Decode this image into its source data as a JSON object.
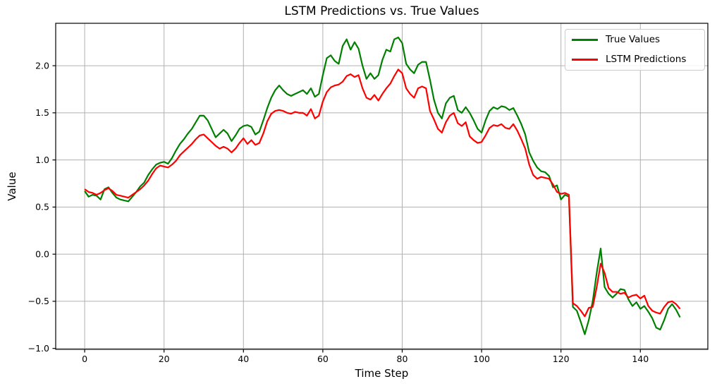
{
  "chart_data": {
    "type": "line",
    "title": "LSTM Predictions vs. True Values",
    "xlabel": "Time Step",
    "ylabel": "Value",
    "x_start": 0,
    "x_step": 1,
    "xticks": [
      0,
      20,
      40,
      60,
      80,
      100,
      120,
      140
    ],
    "yticks": [
      -1.0,
      -0.5,
      0.0,
      0.5,
      1.0,
      1.5,
      2.0
    ],
    "xlim": [
      -7.3,
      157.0
    ],
    "ylim": [
      -1.01,
      2.45
    ],
    "grid": true,
    "grid_color": "#b0b0b0",
    "spine_color": "#000000",
    "background": "#ffffff",
    "legend_position": "upper right",
    "line_width": 2.2,
    "series": [
      {
        "name": "True Values",
        "color": "#008000",
        "values": [
          0.67,
          0.61,
          0.63,
          0.62,
          0.58,
          0.69,
          0.71,
          0.65,
          0.6,
          0.58,
          0.57,
          0.56,
          0.61,
          0.66,
          0.72,
          0.76,
          0.84,
          0.9,
          0.95,
          0.97,
          0.98,
          0.96,
          1.02,
          1.1,
          1.17,
          1.22,
          1.28,
          1.33,
          1.4,
          1.47,
          1.47,
          1.42,
          1.33,
          1.24,
          1.28,
          1.32,
          1.28,
          1.2,
          1.26,
          1.33,
          1.36,
          1.37,
          1.35,
          1.27,
          1.3,
          1.42,
          1.55,
          1.66,
          1.74,
          1.79,
          1.74,
          1.7,
          1.68,
          1.7,
          1.72,
          1.74,
          1.7,
          1.76,
          1.67,
          1.7,
          1.9,
          2.08,
          2.11,
          2.05,
          2.02,
          2.21,
          2.28,
          2.17,
          2.25,
          2.18,
          2.0,
          1.86,
          1.92,
          1.86,
          1.9,
          2.06,
          2.17,
          2.15,
          2.28,
          2.3,
          2.24,
          2.02,
          1.96,
          1.92,
          2.01,
          2.04,
          2.04,
          1.85,
          1.64,
          1.5,
          1.44,
          1.6,
          1.66,
          1.68,
          1.53,
          1.5,
          1.56,
          1.5,
          1.42,
          1.33,
          1.29,
          1.42,
          1.52,
          1.56,
          1.54,
          1.57,
          1.56,
          1.53,
          1.55,
          1.47,
          1.38,
          1.27,
          1.08,
          0.99,
          0.92,
          0.88,
          0.87,
          0.83,
          0.71,
          0.73,
          0.58,
          0.63,
          0.61,
          -0.56,
          -0.6,
          -0.72,
          -0.85,
          -0.7,
          -0.5,
          -0.2,
          0.06,
          -0.35,
          -0.42,
          -0.46,
          -0.42,
          -0.37,
          -0.38,
          -0.48,
          -0.55,
          -0.51,
          -0.58,
          -0.55,
          -0.61,
          -0.68,
          -0.78,
          -0.8,
          -0.7,
          -0.58,
          -0.53,
          -0.59,
          -0.67
        ]
      },
      {
        "name": "LSTM Predictions",
        "color": "#ff0000",
        "values": [
          0.69,
          0.66,
          0.65,
          0.63,
          0.65,
          0.68,
          0.7,
          0.67,
          0.63,
          0.62,
          0.61,
          0.6,
          0.63,
          0.66,
          0.69,
          0.73,
          0.78,
          0.85,
          0.91,
          0.94,
          0.93,
          0.92,
          0.95,
          0.99,
          1.05,
          1.09,
          1.13,
          1.17,
          1.22,
          1.26,
          1.27,
          1.23,
          1.19,
          1.15,
          1.12,
          1.14,
          1.12,
          1.08,
          1.12,
          1.18,
          1.23,
          1.17,
          1.21,
          1.16,
          1.18,
          1.28,
          1.41,
          1.49,
          1.52,
          1.53,
          1.52,
          1.5,
          1.49,
          1.51,
          1.5,
          1.5,
          1.47,
          1.54,
          1.44,
          1.47,
          1.62,
          1.72,
          1.77,
          1.79,
          1.8,
          1.83,
          1.89,
          1.91,
          1.88,
          1.9,
          1.76,
          1.66,
          1.64,
          1.69,
          1.63,
          1.7,
          1.76,
          1.81,
          1.89,
          1.96,
          1.92,
          1.76,
          1.7,
          1.66,
          1.76,
          1.78,
          1.76,
          1.52,
          1.43,
          1.33,
          1.29,
          1.4,
          1.47,
          1.5,
          1.39,
          1.36,
          1.4,
          1.25,
          1.21,
          1.18,
          1.19,
          1.26,
          1.34,
          1.37,
          1.36,
          1.38,
          1.34,
          1.33,
          1.38,
          1.31,
          1.22,
          1.12,
          0.95,
          0.84,
          0.8,
          0.82,
          0.81,
          0.8,
          0.74,
          0.66,
          0.64,
          0.65,
          0.63,
          -0.52,
          -0.55,
          -0.6,
          -0.66,
          -0.57,
          -0.56,
          -0.35,
          -0.1,
          -0.2,
          -0.36,
          -0.4,
          -0.4,
          -0.42,
          -0.41,
          -0.46,
          -0.44,
          -0.43,
          -0.47,
          -0.44,
          -0.55,
          -0.6,
          -0.62,
          -0.63,
          -0.56,
          -0.51,
          -0.5,
          -0.53,
          -0.58
        ]
      }
    ]
  }
}
